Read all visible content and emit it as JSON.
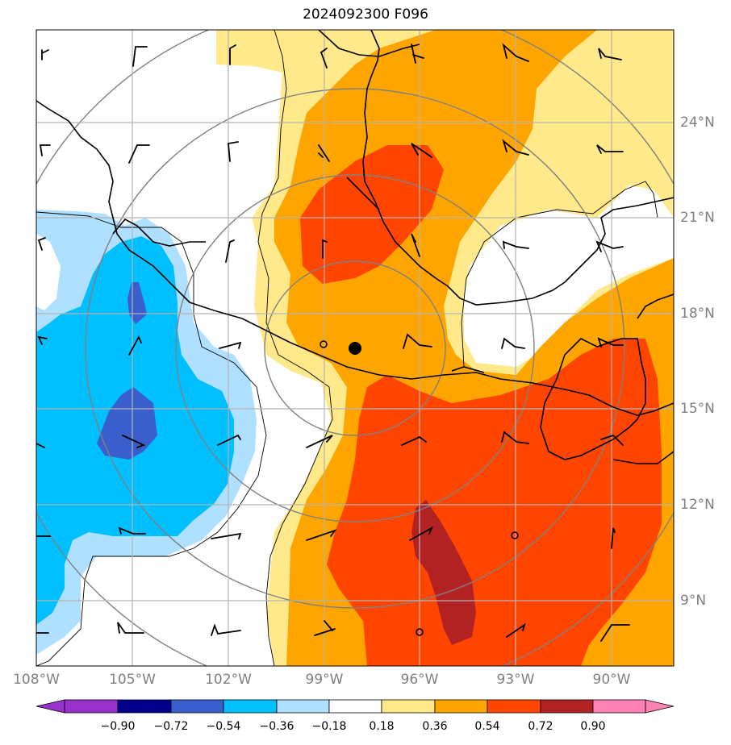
{
  "title": "2024092300 F096",
  "map": {
    "lon_ticks": [
      "108°W",
      "105°W",
      "102°W",
      "99°W",
      "96°W",
      "93°W",
      "90°W"
    ],
    "lat_ticks": [
      "24°N",
      "21°N",
      "18°N",
      "15°N",
      "12°N",
      "9°N"
    ]
  },
  "colorbar": {
    "tick_labels": [
      "−0.90",
      "−0.72",
      "−0.54",
      "−0.36",
      "−0.18",
      "0.18",
      "0.36",
      "0.54",
      "0.72",
      "0.90"
    ],
    "colors": [
      "#9932cc",
      "#00008b",
      "#3a5fcd",
      "#00bfff",
      "#b0e0ff",
      "#ffffff",
      "#ffe98a",
      "#ffa500",
      "#ff4500",
      "#b22222",
      "#ff82b4"
    ]
  },
  "fill_colors": {
    "neg_018": "#b0e0ff",
    "neg_036": "#00bfff",
    "neg_054": "#3a5fcd",
    "pos_018": "#ffe98a",
    "pos_036": "#ffa500",
    "pos_054": "#ff4500",
    "pos_072": "#b22222"
  }
}
